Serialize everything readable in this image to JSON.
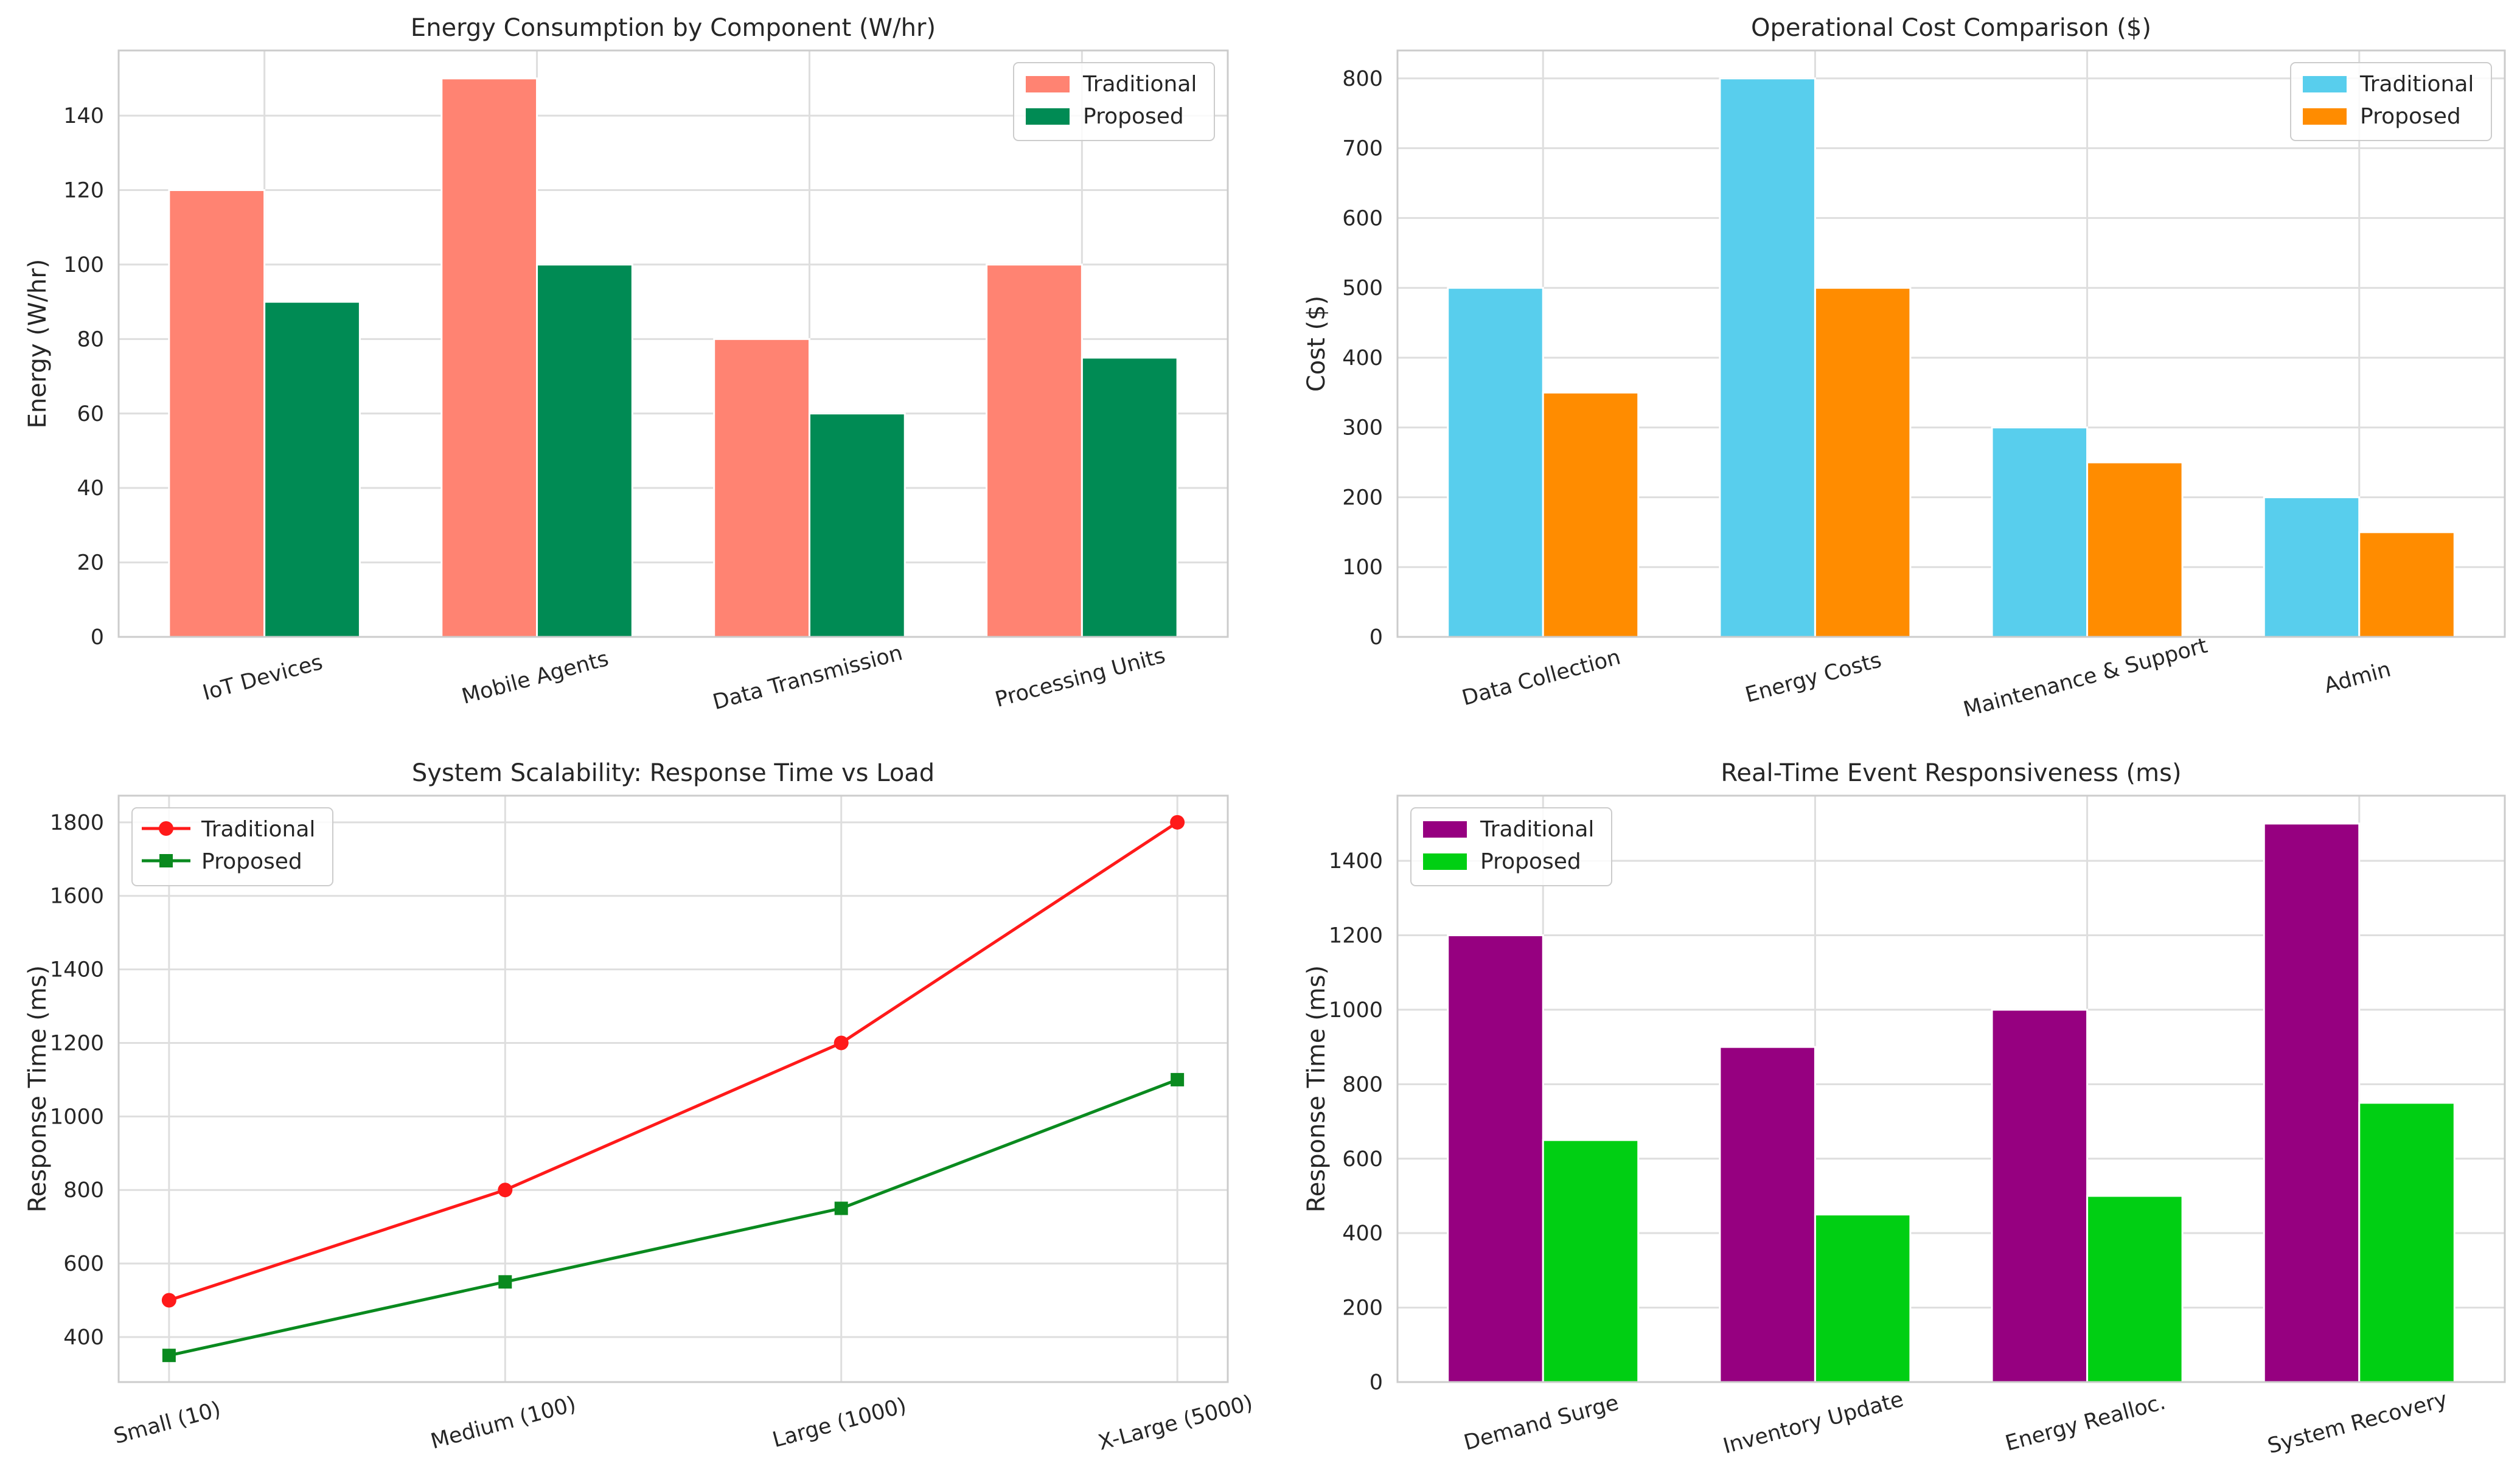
{
  "chart_data": [
    {
      "type": "bar",
      "title": "Energy Consumption by Component (W/hr)",
      "xlabel": "",
      "ylabel": "Energy (W/hr)",
      "ylim": [
        0,
        157.5
      ],
      "yticks": [
        0,
        20,
        40,
        60,
        80,
        100,
        120,
        140
      ],
      "ytick_labels": [
        "0",
        "20",
        "40",
        "60",
        "80",
        "100",
        "120",
        "140"
      ],
      "categories": [
        "IoT Devices",
        "Mobile Agents",
        "Data Transmission",
        "Processing Units"
      ],
      "series": [
        {
          "name": "Traditional",
          "values": [
            120,
            150,
            80,
            100
          ],
          "color": "#ff8372"
        },
        {
          "name": "Proposed",
          "values": [
            90,
            100,
            60,
            75
          ],
          "color": "#008b54"
        }
      ],
      "legend": "top-right",
      "grid": true
    },
    {
      "type": "bar",
      "title": "Operational Cost Comparison ($)",
      "xlabel": "",
      "ylabel": "Cost ($)",
      "ylim": [
        0,
        840
      ],
      "yticks": [
        0,
        100,
        200,
        300,
        400,
        500,
        600,
        700,
        800
      ],
      "ytick_labels": [
        "0",
        "100",
        "200",
        "300",
        "400",
        "500",
        "600",
        "700",
        "800"
      ],
      "categories": [
        "Data Collection",
        "Energy Costs",
        "Maintenance & Support",
        "Admin"
      ],
      "series": [
        {
          "name": "Traditional",
          "values": [
            500,
            800,
            300,
            200
          ],
          "color": "#58ceed"
        },
        {
          "name": "Proposed",
          "values": [
            350,
            500,
            250,
            150
          ],
          "color": "#ff8c00"
        }
      ],
      "legend": "top-right",
      "grid": true
    },
    {
      "type": "line",
      "title": "System Scalability: Response Time vs Load",
      "xlabel": "",
      "ylabel": "Response Time (ms)",
      "ylim": [
        277.5,
        1872.5
      ],
      "yticks": [
        400,
        600,
        800,
        1000,
        1200,
        1400,
        1600,
        1800
      ],
      "ytick_labels": [
        "400",
        "600",
        "800",
        "1000",
        "1200",
        "1400",
        "1600",
        "1800"
      ],
      "categories": [
        "Small (10)",
        "Medium (100)",
        "Large (1000)",
        "X-Large (5000)"
      ],
      "series": [
        {
          "name": "Traditional",
          "values": [
            500,
            800,
            1200,
            1800
          ],
          "color": "#ff1a1a",
          "marker": "circle"
        },
        {
          "name": "Proposed",
          "values": [
            350,
            550,
            750,
            1100
          ],
          "color": "#0a8a1f",
          "marker": "square"
        }
      ],
      "legend": "top-left",
      "grid": true
    },
    {
      "type": "bar",
      "title": "Real-Time Event Responsiveness (ms)",
      "xlabel": "",
      "ylabel": "Response Time (ms)",
      "ylim": [
        0,
        1575
      ],
      "yticks": [
        0,
        200,
        400,
        600,
        800,
        1000,
        1200,
        1400
      ],
      "ytick_labels": [
        "0",
        "200",
        "400",
        "600",
        "800",
        "1000",
        "1200",
        "1400"
      ],
      "categories": [
        "Demand Surge",
        "Inventory Update",
        "Energy Realloc.",
        "System Recovery"
      ],
      "series": [
        {
          "name": "Traditional",
          "values": [
            1200,
            900,
            1000,
            1500
          ],
          "color": "#960080"
        },
        {
          "name": "Proposed",
          "values": [
            650,
            450,
            500,
            750
          ],
          "color": "#00cf13"
        }
      ],
      "legend": "top-left",
      "grid": true
    }
  ]
}
